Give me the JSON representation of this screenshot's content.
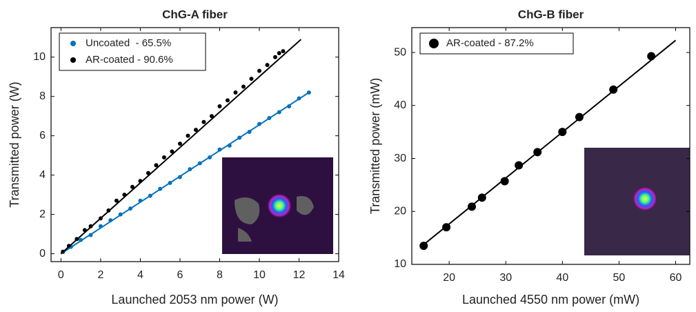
{
  "chart_data": [
    {
      "type": "scatter",
      "title": "ChG-A fiber",
      "x_label": "Launched 2053 nm power (W)",
      "y_label": "Transmitted power (W)",
      "xlim": [
        -0.5,
        14
      ],
      "ylim": [
        -0.4,
        11.5
      ],
      "xticks": [
        0,
        2,
        4,
        6,
        8,
        10,
        12,
        14
      ],
      "yticks": [
        0,
        2,
        4,
        6,
        8,
        10
      ],
      "grid": false,
      "legend": "upper left",
      "series": [
        {
          "name": "Uncoated  - 65.5%",
          "color": "#0072bd",
          "x": [
            0.1,
            0.5,
            1,
            1.5,
            2,
            2.5,
            3,
            3.5,
            4,
            4.5,
            5,
            5.5,
            6,
            6.5,
            7,
            7.5,
            8,
            8.5,
            9,
            9.5,
            10,
            10.5,
            11,
            11.5,
            12,
            12.5
          ],
          "values": [
            0.1,
            0.35,
            0.7,
            0.95,
            1.4,
            1.7,
            2.0,
            2.3,
            2.7,
            2.95,
            3.3,
            3.6,
            3.9,
            4.3,
            4.6,
            4.9,
            5.3,
            5.5,
            5.9,
            6.2,
            6.6,
            6.9,
            7.2,
            7.5,
            7.9,
            8.2
          ]
        },
        {
          "name": "AR-coated - 90.6%",
          "color": "#000000",
          "x": [
            0.1,
            0.4,
            0.8,
            1.2,
            1.5,
            2.0,
            2.4,
            2.8,
            3.2,
            3.6,
            4.0,
            4.4,
            4.8,
            5.2,
            5.6,
            6.0,
            6.4,
            6.8,
            7.2,
            7.6,
            8.0,
            8.4,
            8.8,
            9.2,
            9.6,
            10.0,
            10.4,
            10.8,
            11.0,
            11.2
          ],
          "values": [
            0.1,
            0.4,
            0.75,
            1.2,
            1.4,
            1.8,
            2.2,
            2.7,
            3.0,
            3.4,
            3.7,
            4.1,
            4.5,
            4.9,
            5.2,
            5.6,
            6.0,
            6.3,
            6.7,
            7.0,
            7.5,
            7.8,
            8.2,
            8.5,
            8.9,
            9.3,
            9.6,
            10.0,
            10.2,
            10.3
          ]
        }
      ],
      "fits": [
        {
          "color": "#0072bd",
          "x": [
            0,
            12.5
          ],
          "values": [
            0,
            8.2
          ]
        },
        {
          "color": "#000000",
          "x": [
            0,
            12.1
          ],
          "values": [
            0,
            10.9
          ]
        }
      ]
    },
    {
      "type": "scatter",
      "title": "ChG-B fiber",
      "x_label": "Launched 4550 nm power (mW)",
      "y_label": "Transmitted power (mW)",
      "xlim": [
        13.4,
        62.5
      ],
      "ylim": [
        10,
        54.7
      ],
      "xticks": [
        20,
        30,
        40,
        50,
        60
      ],
      "yticks": [
        10,
        20,
        30,
        40,
        50
      ],
      "grid": false,
      "legend": "upper left",
      "series": [
        {
          "name": "AR-coated - 87.2%",
          "color": "#000000",
          "x": [
            15.5,
            19.5,
            24,
            25.8,
            29.8,
            32.3,
            35.6,
            40,
            43,
            49,
            55.7
          ],
          "values": [
            13.5,
            17,
            20.9,
            22.6,
            25.7,
            28.7,
            31.2,
            35,
            37.8,
            43,
            49.3
          ]
        }
      ],
      "fits": [
        {
          "color": "#000000",
          "x": [
            15,
            60
          ],
          "values": [
            13.3,
            52.3
          ]
        }
      ]
    }
  ]
}
